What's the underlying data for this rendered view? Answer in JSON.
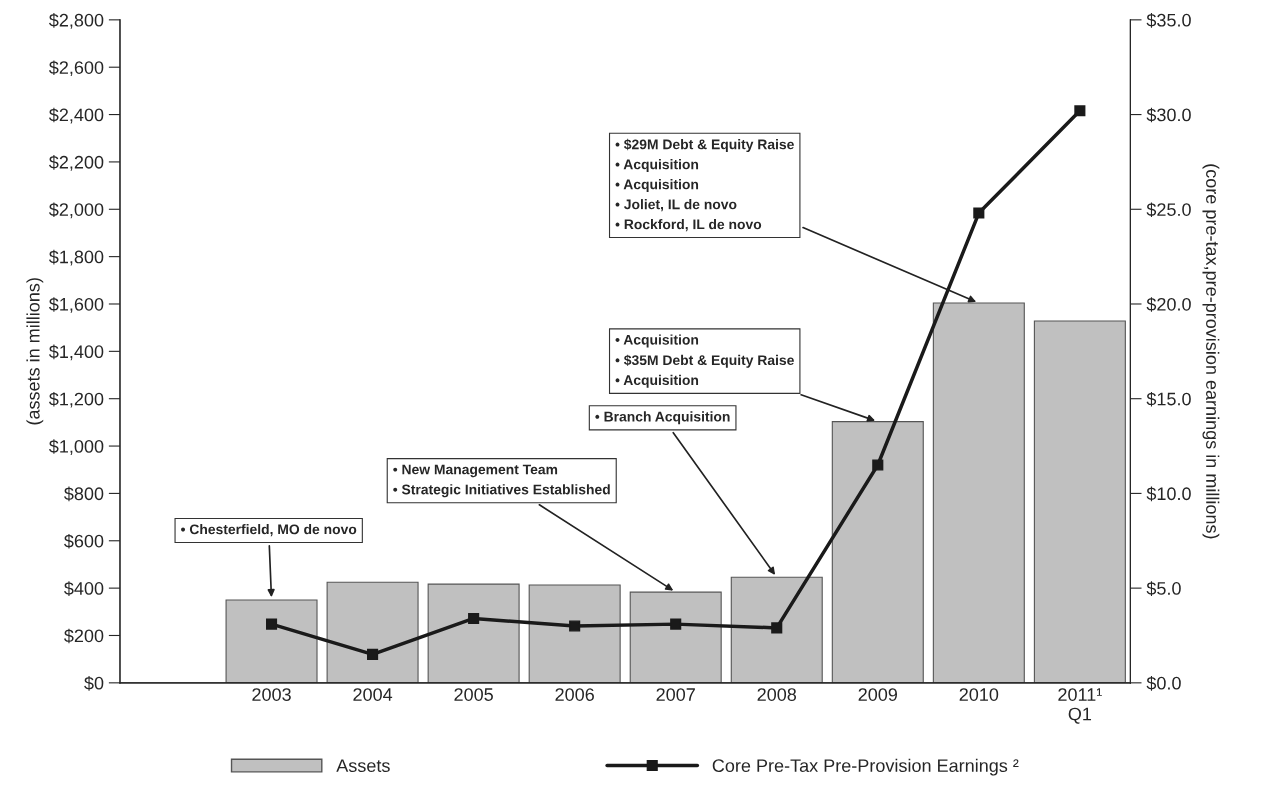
{
  "chart_data": {
    "type": "bar",
    "categories": [
      null,
      "2003",
      "2004",
      "2005",
      "2006",
      "2007",
      "2008",
      "2009",
      "2010",
      "2011¹\nQ1"
    ],
    "series": [
      {
        "name": "Assets",
        "color": "#c0c0c0",
        "values": [
          null,
          350,
          425,
          417,
          413,
          383,
          446,
          1103,
          1604,
          1528
        ]
      },
      {
        "name": "Core Pre-Tax Pre-Provision Earnings ²",
        "type": "line",
        "axis": "y2",
        "color": "#1a1a1a",
        "values": [
          null,
          3.1,
          1.5,
          3.4,
          3.0,
          3.1,
          2.9,
          11.5,
          24.8,
          30.2
        ]
      }
    ],
    "ylabel": "(assets in millions)",
    "y2label": "(core pre-tax,pre-provision earnings in millions)",
    "ylim": [
      0,
      2800
    ],
    "yticks": [
      {
        "value": 0,
        "label": "$0"
      },
      {
        "value": 200,
        "label": "$200"
      },
      {
        "value": 400,
        "label": "$400"
      },
      {
        "value": 600,
        "label": "$600"
      },
      {
        "value": 800,
        "label": "$800"
      },
      {
        "value": 1000,
        "label": "$1,000"
      },
      {
        "value": 1200,
        "label": "$1,200"
      },
      {
        "value": 1400,
        "label": "$1,400"
      },
      {
        "value": 1600,
        "label": "$1,600"
      },
      {
        "value": 1800,
        "label": "$1,800"
      },
      {
        "value": 2000,
        "label": "$2,000"
      },
      {
        "value": 2200,
        "label": "$2,200"
      },
      {
        "value": 2400,
        "label": "$2,400"
      },
      {
        "value": 2600,
        "label": "$2,600"
      },
      {
        "value": 2800,
        "label": "$2,800"
      }
    ],
    "y2lim": [
      0,
      35
    ],
    "y2ticks": [
      {
        "value": 0,
        "label": "$0.0"
      },
      {
        "value": 5,
        "label": "$5.0"
      },
      {
        "value": 10,
        "label": "$10.0"
      },
      {
        "value": 15,
        "label": "$15.0"
      },
      {
        "value": 20,
        "label": "$20.0"
      },
      {
        "value": 25,
        "label": "$25.0"
      },
      {
        "value": 30,
        "label": "$30.0"
      },
      {
        "value": 35,
        "label": "$35.0"
      }
    ],
    "annotations": [
      {
        "text": "• Chesterfield, MO de novo",
        "x": "2003",
        "y": 350
      },
      {
        "text": "• New Management Team\n• Strategic Initiatives Established",
        "x": "2007",
        "y": 383
      },
      {
        "text": "• Branch Acquisition",
        "x": "2008",
        "y": 446
      },
      {
        "text": "• Acquisition\n• $35M Debt & Equity Raise\n• Acquisition",
        "x": "2009",
        "y": 1103
      },
      {
        "text": "• $29M Debt & Equity Raise\n• Acquisition\n• Acquisition\n• Joliet, IL de novo\n• Rockford, IL de novo",
        "x": "2010",
        "y": 1604
      }
    ],
    "marker": "square",
    "legend": "bottom",
    "grid": false
  }
}
